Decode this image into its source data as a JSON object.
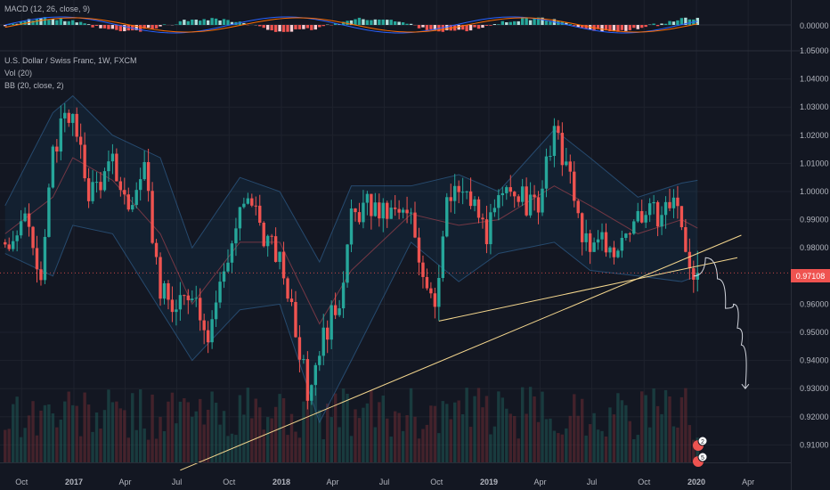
{
  "macd_panel": {
    "label": "MACD (12, 26, close, 9)",
    "value_label": "0.00000"
  },
  "main_panel": {
    "title": "U.S. Dollar / Swiss Franc, 1W, FXCM",
    "vol_label": "Vol (20)",
    "bb_label": "BB (20, close, 2)",
    "current_price_label": "0.97108"
  },
  "event_badges": [
    {
      "count": "2"
    },
    {
      "count": "5"
    }
  ],
  "colors": {
    "up": "#26a69a",
    "down": "#ef5350",
    "drawing": "#f5d78e",
    "background": "#131722",
    "band_fill": "#2196f3"
  },
  "chart_data": {
    "type": "candlestick",
    "symbol": "USDCHF",
    "timeframe": "1W",
    "ylim": [
      0.905,
      1.05
    ],
    "y_ticks": [
      "1.05000",
      "1.04000",
      "1.03000",
      "1.02000",
      "1.01000",
      "1.00000",
      "0.99000",
      "0.98000",
      "0.96000",
      "0.95000",
      "0.94000",
      "0.93000",
      "0.92000",
      "0.91000"
    ],
    "x_ticks": [
      "Oct",
      "2017",
      "Apr",
      "Jul",
      "Oct",
      "2018",
      "Apr",
      "Jul",
      "Oct",
      "2019",
      "Apr",
      "Jul",
      "Oct",
      "2020",
      "Apr"
    ],
    "x_tick_bold": [
      false,
      true,
      false,
      false,
      false,
      true,
      false,
      false,
      false,
      true,
      false,
      false,
      false,
      true,
      false
    ],
    "price_path": [
      [
        "2016-09-02",
        0.982
      ],
      [
        "2016-10-14",
        0.99
      ],
      [
        "2016-11-04",
        0.97
      ],
      [
        "2016-11-25",
        1.012
      ],
      [
        "2016-12-16",
        1.03
      ],
      [
        "2016-12-30",
        1.025
      ],
      [
        "2017-01-27",
        1.0
      ],
      [
        "2017-02-24",
        1.005
      ],
      [
        "2017-03-10",
        1.01
      ],
      [
        "2017-04-07",
        0.994
      ],
      [
        "2017-05-05",
        1.006
      ],
      [
        "2017-06-02",
        0.965
      ],
      [
        "2017-06-30",
        0.957
      ],
      [
        "2017-07-28",
        0.966
      ],
      [
        "2017-08-25",
        0.95
      ],
      [
        "2017-09-22",
        0.972
      ],
      [
        "2017-10-20",
        0.992
      ],
      [
        "2017-11-10",
        0.997
      ],
      [
        "2017-12-01",
        0.985
      ],
      [
        "2017-12-29",
        0.975
      ],
      [
        "2018-01-19",
        0.96
      ],
      [
        "2018-02-16",
        0.928
      ],
      [
        "2018-03-09",
        0.945
      ],
      [
        "2018-04-13",
        0.962
      ],
      [
        "2018-05-04",
        0.99
      ],
      [
        "2018-06-01",
        0.995
      ],
      [
        "2018-06-29",
        0.992
      ],
      [
        "2018-07-27",
        0.992
      ],
      [
        "2018-08-17",
        0.99
      ],
      [
        "2018-09-07",
        0.972
      ],
      [
        "2018-09-28",
        0.962
      ],
      [
        "2018-10-19",
        0.995
      ],
      [
        "2018-11-09",
        1.0
      ],
      [
        "2018-12-07",
        0.995
      ],
      [
        "2018-12-28",
        0.985
      ],
      [
        "2019-01-18",
        0.995
      ],
      [
        "2019-02-15",
        1.002
      ],
      [
        "2019-03-08",
        0.995
      ],
      [
        "2019-03-29",
        0.996
      ],
      [
        "2019-04-26",
        1.02
      ],
      [
        "2019-05-17",
        1.01
      ],
      [
        "2019-06-07",
        0.99
      ],
      [
        "2019-06-28",
        0.977
      ],
      [
        "2019-07-19",
        0.985
      ],
      [
        "2019-08-09",
        0.975
      ],
      [
        "2019-08-30",
        0.987
      ],
      [
        "2019-09-20",
        0.992
      ],
      [
        "2019-10-11",
        0.992
      ],
      [
        "2019-11-01",
        0.992
      ],
      [
        "2019-11-22",
        0.998
      ],
      [
        "2019-12-06",
        0.987
      ],
      [
        "2019-12-20",
        0.975
      ],
      [
        "2020-01-03",
        0.971
      ]
    ],
    "bollinger_bands": {
      "upper": [
        [
          "2016-09-02",
          0.995
        ],
        [
          "2016-11-25",
          1.028
        ],
        [
          "2016-12-30",
          1.034
        ],
        [
          "2017-03-10",
          1.02
        ],
        [
          "2017-06-02",
          1.012
        ],
        [
          "2017-07-28",
          0.98
        ],
        [
          "2017-10-20",
          1.005
        ],
        [
          "2017-12-29",
          1.0
        ],
        [
          "2018-03-09",
          0.975
        ],
        [
          "2018-05-04",
          1.002
        ],
        [
          "2018-08-17",
          1.002
        ],
        [
          "2018-11-09",
          1.006
        ],
        [
          "2019-01-18",
          1.0
        ],
        [
          "2019-04-26",
          1.022
        ],
        [
          "2019-06-28",
          1.012
        ],
        [
          "2019-09-20",
          0.998
        ],
        [
          "2019-12-06",
          1.003
        ],
        [
          "2020-01-03",
          1.004
        ]
      ],
      "middle": [
        [
          "2016-09-02",
          0.985
        ],
        [
          "2016-11-25",
          0.998
        ],
        [
          "2016-12-30",
          1.012
        ],
        [
          "2017-03-10",
          1.004
        ],
        [
          "2017-06-02",
          0.985
        ],
        [
          "2017-07-28",
          0.96
        ],
        [
          "2017-10-20",
          0.982
        ],
        [
          "2017-12-29",
          0.982
        ],
        [
          "2018-03-09",
          0.953
        ],
        [
          "2018-05-04",
          0.972
        ],
        [
          "2018-08-17",
          0.992
        ],
        [
          "2018-11-09",
          0.988
        ],
        [
          "2019-01-18",
          0.99
        ],
        [
          "2019-04-26",
          1.002
        ],
        [
          "2019-06-28",
          0.995
        ],
        [
          "2019-09-20",
          0.985
        ],
        [
          "2019-12-06",
          0.99
        ],
        [
          "2020-01-03",
          0.987
        ]
      ],
      "lower": [
        [
          "2016-09-02",
          0.978
        ],
        [
          "2016-11-25",
          0.97
        ],
        [
          "2016-12-30",
          0.988
        ],
        [
          "2017-03-10",
          0.985
        ],
        [
          "2017-06-02",
          0.958
        ],
        [
          "2017-07-28",
          0.94
        ],
        [
          "2017-10-20",
          0.958
        ],
        [
          "2017-12-29",
          0.96
        ],
        [
          "2018-03-09",
          0.918
        ],
        [
          "2018-05-04",
          0.94
        ],
        [
          "2018-08-17",
          0.982
        ],
        [
          "2018-11-09",
          0.968
        ],
        [
          "2019-01-18",
          0.978
        ],
        [
          "2019-04-26",
          0.982
        ],
        [
          "2019-06-28",
          0.972
        ],
        [
          "2019-09-20",
          0.97
        ],
        [
          "2019-12-06",
          0.968
        ],
        [
          "2020-01-03",
          0.97
        ]
      ]
    },
    "trend_lines": [
      {
        "from": [
          "2017-07-07",
          0.901
        ],
        "to": [
          "2020-03-20",
          0.9845
        ]
      },
      {
        "from": [
          "2018-10-05",
          0.954
        ],
        "to": [
          "2020-03-13",
          0.9765
        ]
      }
    ],
    "projection_path": [
      [
        "2019-12-27",
        0.97
      ],
      [
        "2020-01-17",
        0.9765
      ],
      [
        "2020-02-07",
        0.969
      ],
      [
        "2020-02-21",
        0.9585
      ],
      [
        "2020-03-06",
        0.96
      ],
      [
        "2020-03-13",
        0.9515
      ],
      [
        "2020-03-20",
        0.9455
      ],
      [
        "2020-03-27",
        0.93
      ]
    ]
  }
}
